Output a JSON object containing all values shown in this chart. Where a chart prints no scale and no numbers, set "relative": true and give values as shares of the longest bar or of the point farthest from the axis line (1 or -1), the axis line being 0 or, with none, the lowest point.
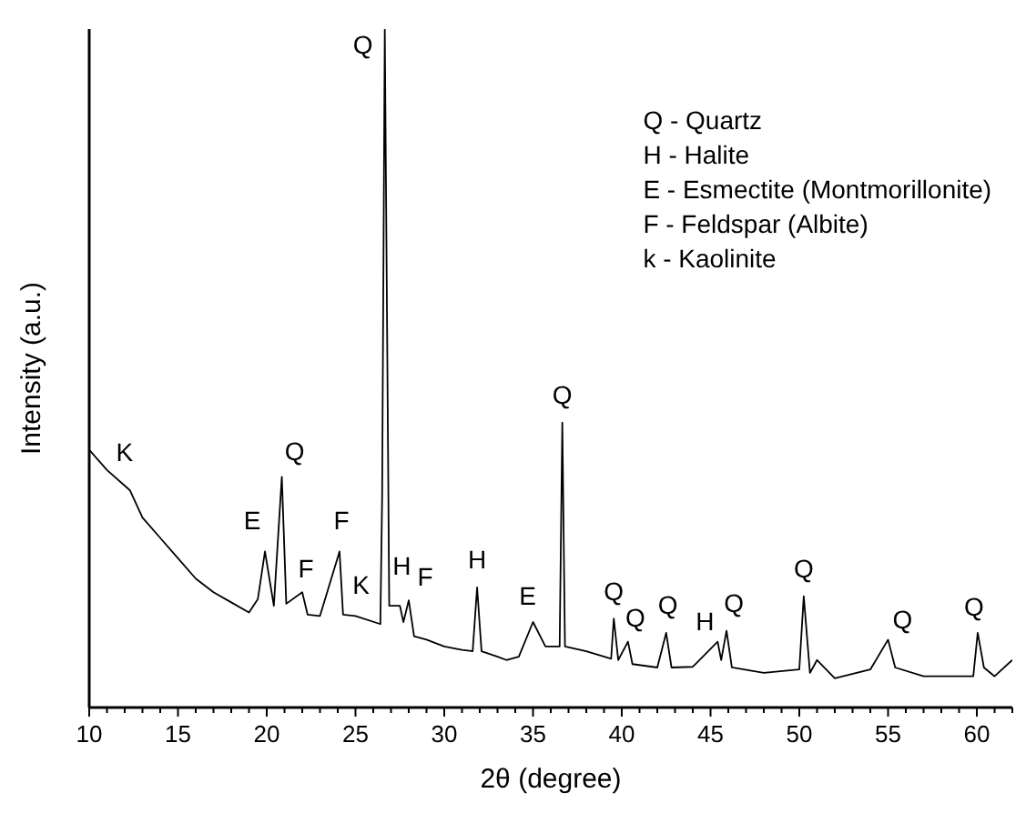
{
  "chart_data": {
    "type": "line",
    "xlabel": "2θ (degree)",
    "ylabel": "Intensity (a.u.)",
    "relative": true,
    "grid": false,
    "marker": "none",
    "line_style": "solid",
    "xlim": [
      10,
      62
    ],
    "xticks": [
      10,
      {
        "value": 11,
        "label": null
      },
      {
        "value": 12,
        "label": null
      },
      {
        "value": 13,
        "label": null
      },
      {
        "value": 14,
        "label": null
      },
      15,
      {
        "value": 16,
        "label": null
      },
      {
        "value": 17,
        "label": null
      },
      {
        "value": 18,
        "label": null
      },
      {
        "value": 19,
        "label": null
      },
      20,
      {
        "value": 21,
        "label": null
      },
      {
        "value": 22,
        "label": null
      },
      {
        "value": 23,
        "label": null
      },
      {
        "value": 24,
        "label": null
      },
      25,
      {
        "value": 26,
        "label": null
      },
      {
        "value": 27,
        "label": null
      },
      {
        "value": 28,
        "label": null
      },
      {
        "value": 29,
        "label": null
      },
      30,
      {
        "value": 31,
        "label": null
      },
      {
        "value": 32,
        "label": null
      },
      {
        "value": 33,
        "label": null
      },
      {
        "value": 34,
        "label": null
      },
      35,
      {
        "value": 36,
        "label": null
      },
      {
        "value": 37,
        "label": null
      },
      {
        "value": 38,
        "label": null
      },
      {
        "value": 39,
        "label": null
      },
      40,
      {
        "value": 41,
        "label": null
      },
      {
        "value": 42,
        "label": null
      },
      {
        "value": 43,
        "label": null
      },
      {
        "value": 44,
        "label": null
      },
      45,
      {
        "value": 46,
        "label": null
      },
      {
        "value": 47,
        "label": null
      },
      {
        "value": 48,
        "label": null
      },
      {
        "value": 49,
        "label": null
      },
      50,
      {
        "value": 51,
        "label": null
      },
      {
        "value": 52,
        "label": null
      },
      {
        "value": 53,
        "label": null
      },
      {
        "value": 54,
        "label": null
      },
      55,
      {
        "value": 56,
        "label": null
      },
      {
        "value": 57,
        "label": null
      },
      {
        "value": 58,
        "label": null
      },
      {
        "value": 59,
        "label": null
      },
      60,
      {
        "value": 61,
        "label": null
      },
      {
        "value": 62,
        "label": null
      }
    ],
    "series": [
      {
        "color": "#000000",
        "x": [
          10,
          11,
          12.3,
          13,
          14,
          15,
          16,
          17,
          18,
          19,
          19.5,
          19.9,
          20.4,
          20.85,
          21.1,
          22,
          22.3,
          23,
          24.1,
          24.3,
          25,
          26.4,
          26.5,
          26.65,
          26.9,
          27.5,
          27.7,
          28,
          28.3,
          29,
          30,
          31,
          31.6,
          31.85,
          32.1,
          33,
          33.5,
          34.2,
          35,
          35.7,
          36.5,
          36.65,
          36.8,
          38,
          39.4,
          39.55,
          39.8,
          40.35,
          40.6,
          42,
          42.5,
          42.8,
          44,
          45.4,
          45.6,
          45.9,
          46.2,
          48,
          50,
          50.25,
          50.6,
          51,
          52,
          54,
          55,
          55.4,
          57,
          59.8,
          60.05,
          60.4,
          61,
          62
        ],
        "values": [
          0.38,
          0.35,
          0.32,
          0.28,
          0.25,
          0.22,
          0.19,
          0.17,
          0.155,
          0.14,
          0.16,
          0.23,
          0.15,
          0.34,
          0.153,
          0.17,
          0.137,
          0.135,
          0.23,
          0.137,
          0.135,
          0.123,
          0.31,
          1,
          0.15,
          0.15,
          0.126,
          0.158,
          0.105,
          0.1,
          0.09,
          0.085,
          0.083,
          0.177,
          0.083,
          0.075,
          0.07,
          0.075,
          0.126,
          0.09,
          0.09,
          0.42,
          0.09,
          0.083,
          0.072,
          0.131,
          0.07,
          0.097,
          0.064,
          0.059,
          0.11,
          0.059,
          0.06,
          0.097,
          0.07,
          0.113,
          0.059,
          0.051,
          0.056,
          0.164,
          0.051,
          0.07,
          0.043,
          0.056,
          0.1,
          0.059,
          0.046,
          0.046,
          0.11,
          0.059,
          0.046,
          0.07
        ]
      }
    ],
    "annotations": [
      "Q - Quartz",
      "H - Halite",
      "E - Esmectite (Montmorillonite)",
      "F - Feldspar (Albite)",
      "k - Kaolinite",
      {
        "text": "K",
        "x": 12.3,
        "y": 0.32
      },
      {
        "text": "E",
        "x": 19.9,
        "y": 0.23
      },
      {
        "text": "Q",
        "x": 20.85,
        "y": 0.34
      },
      {
        "text": "F",
        "x": 22,
        "y": 0.17
      },
      {
        "text": "F",
        "x": 24.1,
        "y": 0.23
      },
      {
        "text": "K",
        "x": 25,
        "y": 0.135
      },
      {
        "text": "Q",
        "x": 26.65,
        "y": 1
      },
      {
        "text": "H",
        "x": 27.5,
        "y": 0.15
      },
      {
        "text": "F",
        "x": 28,
        "y": 0.158
      },
      {
        "text": "H",
        "x": 31.85,
        "y": 0.177
      },
      {
        "text": "E",
        "x": 35,
        "y": 0.126
      },
      {
        "text": "Q",
        "x": 36.65,
        "y": 0.42
      },
      {
        "text": "Q",
        "x": 39.55,
        "y": 0.131
      },
      {
        "text": "Q",
        "x": 40.35,
        "y": 0.097
      },
      {
        "text": "Q",
        "x": 42.5,
        "y": 0.11
      },
      {
        "text": "H",
        "x": 45.4,
        "y": 0.097
      },
      {
        "text": "Q",
        "x": 45.9,
        "y": 0.113
      },
      {
        "text": "Q",
        "x": 50.25,
        "y": 0.164
      },
      {
        "text": "Q",
        "x": 55,
        "y": 0.1
      },
      {
        "text": "Q",
        "x": 60.05,
        "y": 0.11
      }
    ]
  }
}
